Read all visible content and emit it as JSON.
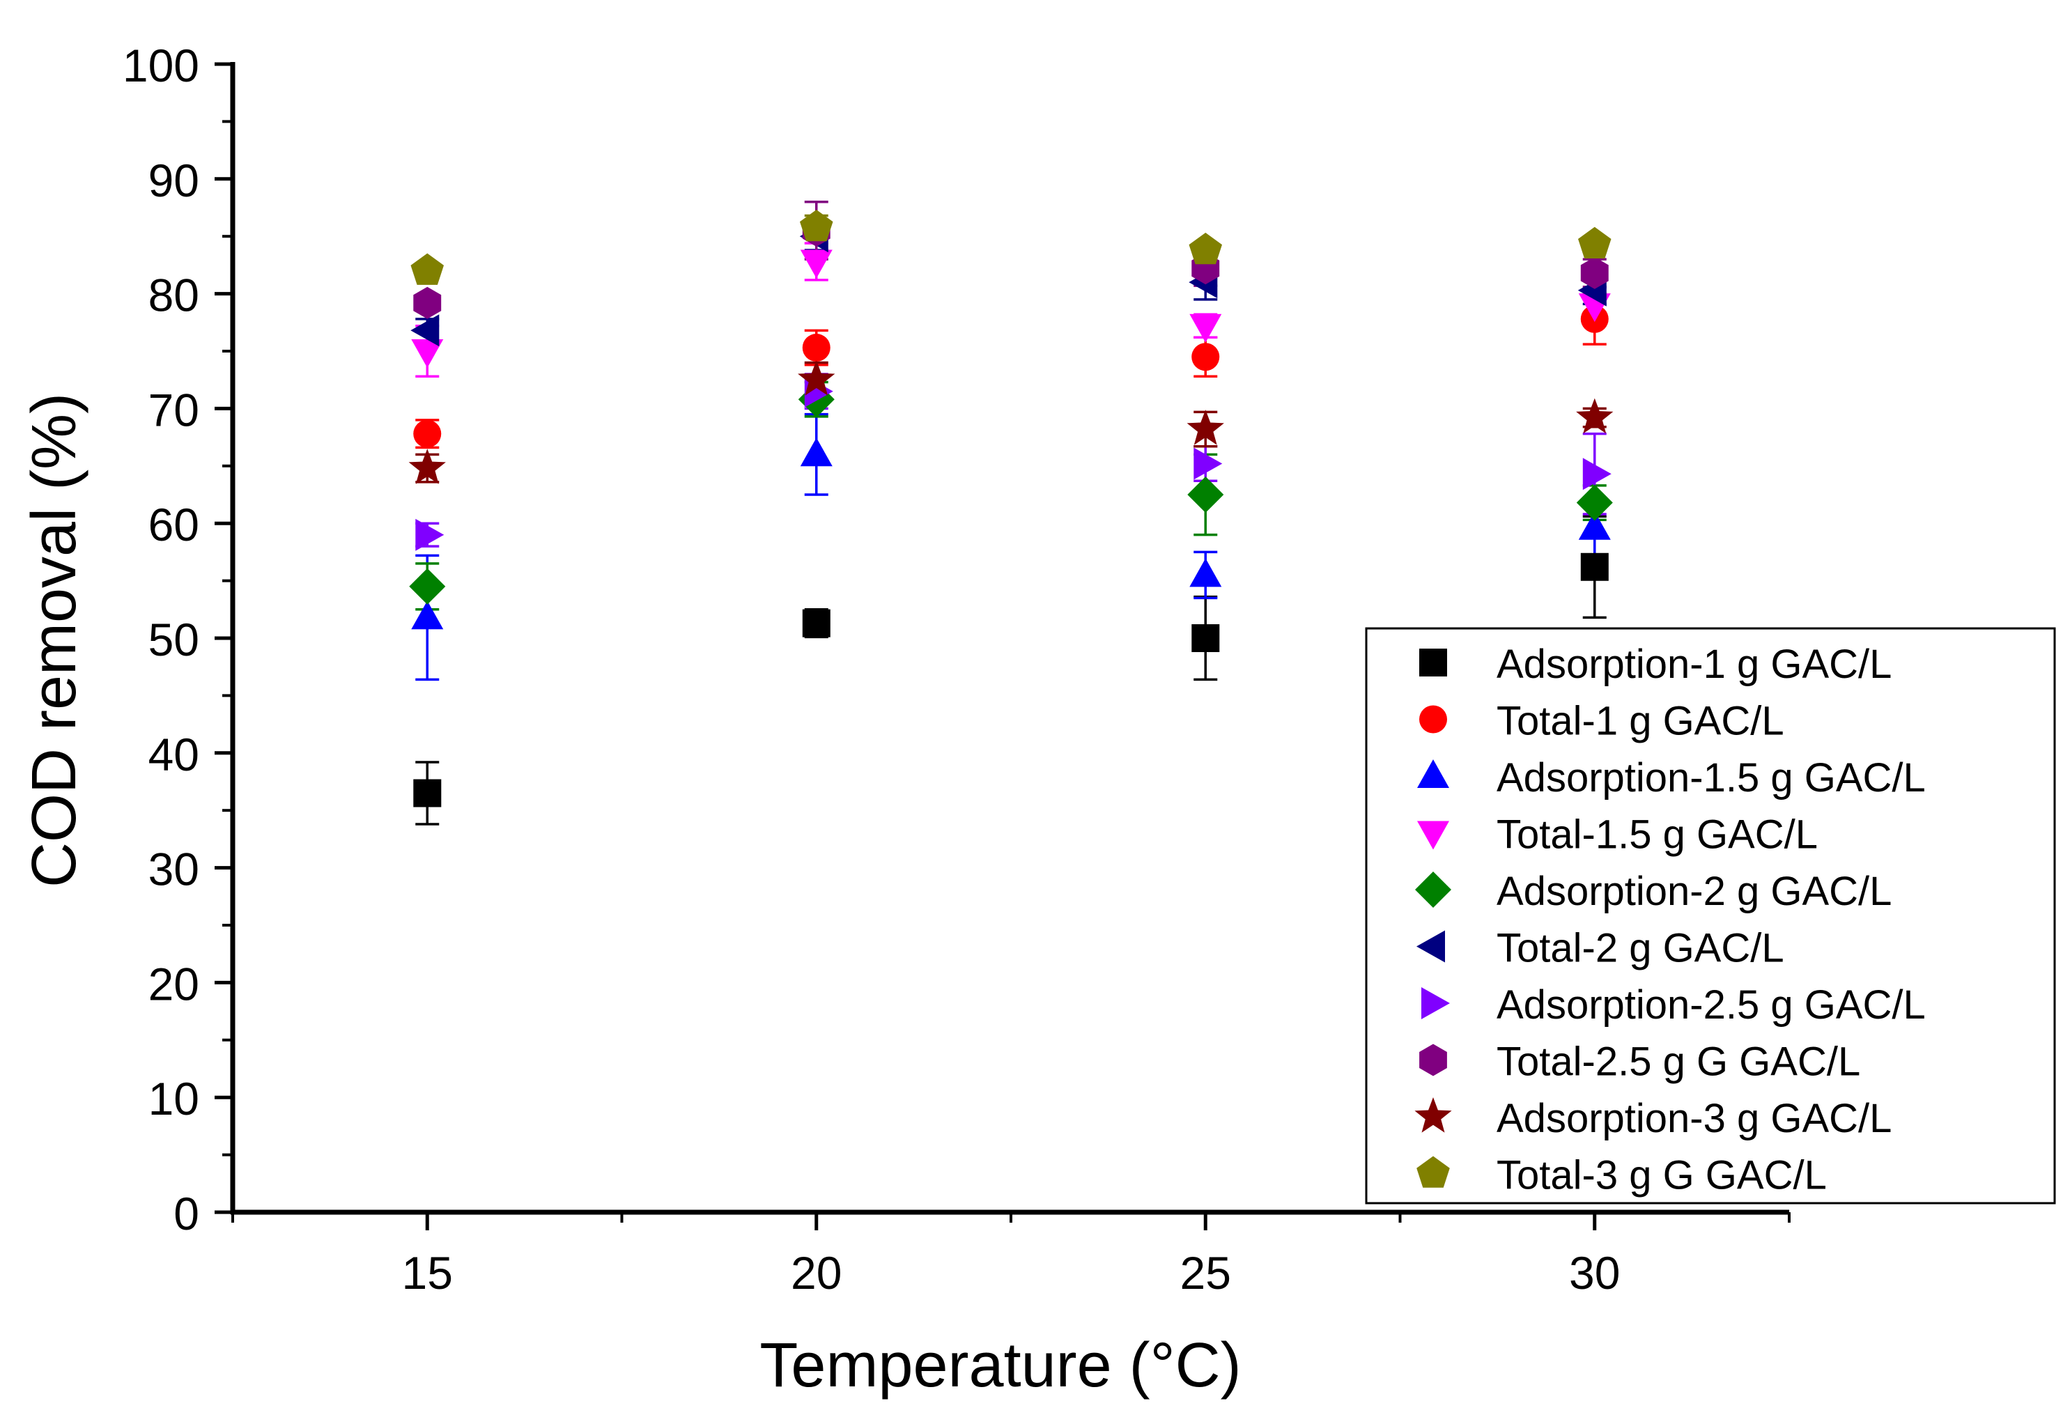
{
  "chart_data": {
    "type": "scatter",
    "title": "",
    "xlabel": "Temperature (°C)",
    "ylabel": "COD removal (%)",
    "xlim": [
      12.5,
      32.5
    ],
    "ylim": [
      0,
      100
    ],
    "x_ticks": [
      15,
      20,
      25,
      30
    ],
    "x_tick_labels": [
      "15",
      "20",
      "25",
      "30"
    ],
    "x_minor_ticks": [
      12.5,
      17.5,
      22.5,
      27.5,
      32.5
    ],
    "y_ticks": [
      0,
      10,
      20,
      30,
      40,
      50,
      60,
      70,
      80,
      90,
      100
    ],
    "y_tick_labels": [
      "0",
      "10",
      "20",
      "30",
      "40",
      "50",
      "60",
      "70",
      "80",
      "90",
      "100"
    ],
    "grid": false,
    "legend_position": "bottom-right",
    "series": [
      {
        "name": "Adsorption-1 g GAC/L",
        "marker": "square",
        "color": "#000000",
        "x": [
          15,
          20,
          25,
          30
        ],
        "y": [
          36.5,
          51.3,
          50.0,
          56.2
        ],
        "err": [
          2.7,
          1.2,
          3.6,
          4.4
        ]
      },
      {
        "name": "Total-1 g GAC/L",
        "marker": "circle",
        "color": "#ff0000",
        "x": [
          15,
          20,
          25,
          30
        ],
        "y": [
          67.8,
          75.3,
          74.5,
          77.8
        ],
        "err": [
          1.2,
          1.5,
          1.7,
          2.2
        ]
      },
      {
        "name": "Adsorption-1.5 g GAC/L",
        "marker": "triangle-up",
        "color": "#0000ff",
        "x": [
          15,
          20,
          25,
          30
        ],
        "y": [
          51.8,
          66.0,
          55.5,
          59.6
        ],
        "err": [
          5.4,
          3.5,
          2.0,
          2.5
        ]
      },
      {
        "name": "Total-1.5 g GAC/L",
        "marker": "triangle-down",
        "color": "#ff00ff",
        "x": [
          15,
          20,
          25,
          30
        ],
        "y": [
          75.0,
          82.8,
          77.2,
          79.0
        ],
        "err": [
          2.2,
          1.6,
          1.0,
          1.5
        ]
      },
      {
        "name": "Adsorption-2 g GAC/L",
        "marker": "diamond",
        "color": "#008000",
        "x": [
          15,
          20,
          25,
          30
        ],
        "y": [
          54.5,
          70.8,
          62.5,
          61.8
        ],
        "err": [
          2.0,
          1.5,
          3.5,
          1.5
        ]
      },
      {
        "name": "Total-2 g GAC/L",
        "marker": "triangle-left",
        "color": "#000080",
        "x": [
          15,
          20,
          25,
          30
        ],
        "y": [
          76.8,
          85.0,
          81.0,
          80.3
        ],
        "err": [
          1.0,
          1.2,
          1.5,
          1.2
        ]
      },
      {
        "name": "Adsorption-2.5 g GAC/L",
        "marker": "triangle-right",
        "color": "#8000ff",
        "x": [
          15,
          20,
          25,
          30
        ],
        "y": [
          59.0,
          71.5,
          65.2,
          64.3
        ],
        "err": [
          1.0,
          1.5,
          1.5,
          3.5
        ]
      },
      {
        "name": "Total-2.5 g G GAC/L",
        "marker": "hexagon",
        "color": "#800080",
        "x": [
          15,
          20,
          25,
          30
        ],
        "y": [
          79.2,
          85.5,
          82.2,
          81.8
        ],
        "err": [
          0.5,
          2.5,
          1.5,
          1.2
        ]
      },
      {
        "name": "Adsorption-3 g GAC/L",
        "marker": "star",
        "color": "#800000",
        "x": [
          15,
          20,
          25,
          30
        ],
        "y": [
          64.8,
          72.5,
          68.2,
          69.2
        ],
        "err": [
          1.2,
          1.5,
          1.5,
          0.8
        ]
      },
      {
        "name": "Total-3 g G GAC/L",
        "marker": "pentagon",
        "color": "#808000",
        "x": [
          15,
          20,
          25,
          30
        ],
        "y": [
          82.0,
          85.8,
          83.8,
          84.3
        ],
        "err": [
          0.3,
          1.0,
          0.5,
          0.5
        ]
      }
    ]
  }
}
